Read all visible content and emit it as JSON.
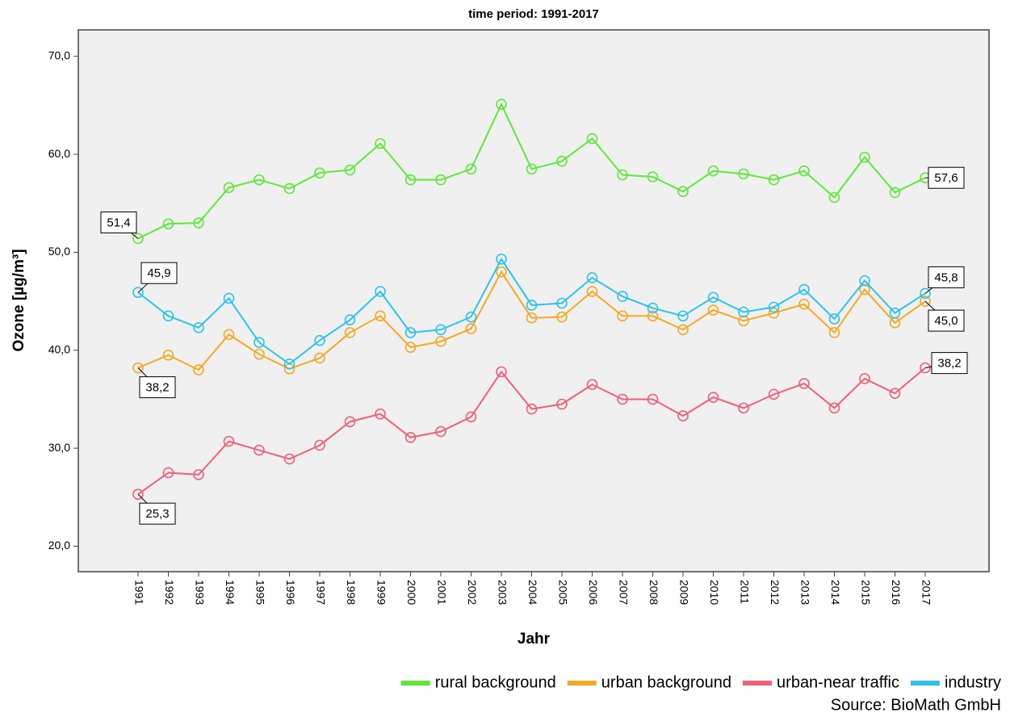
{
  "chart_data": {
    "type": "line",
    "title": "time period: 1991-2017",
    "x_label": "Jahr",
    "y_label": "Ozone [µg/m³]",
    "source": "Source: BioMath GmbH",
    "categories": [
      "1991",
      "1992",
      "1993",
      "1994",
      "1995",
      "1996",
      "1997",
      "1998",
      "1999",
      "2000",
      "2001",
      "2002",
      "2003",
      "2004",
      "2005",
      "2006",
      "2007",
      "2008",
      "2009",
      "2010",
      "2011",
      "2012",
      "2013",
      "2014",
      "2015",
      "2016",
      "2017"
    ],
    "ylim": [
      17.4,
      72.7
    ],
    "yticks": [
      {
        "value": 20,
        "label": "20,0"
      },
      {
        "value": 30,
        "label": "30,0"
      },
      {
        "value": 40,
        "label": "40,0"
      },
      {
        "value": 50,
        "label": "50,0"
      },
      {
        "value": 60,
        "label": "60,0"
      },
      {
        "value": 70,
        "label": "70,0"
      }
    ],
    "legend": "bottom-right",
    "series": [
      {
        "name": "rural background",
        "color": "#5ee838",
        "values": [
          51.4,
          52.9,
          53.0,
          56.6,
          57.4,
          56.5,
          58.1,
          58.4,
          61.1,
          57.4,
          57.4,
          58.5,
          65.1,
          58.5,
          59.3,
          61.6,
          57.9,
          57.7,
          56.2,
          58.3,
          58.0,
          57.4,
          58.3,
          55.6,
          59.7,
          56.1,
          57.6
        ],
        "value_labels": [
          "51,4",
          null,
          null,
          null,
          null,
          null,
          null,
          null,
          null,
          null,
          null,
          null,
          null,
          null,
          null,
          null,
          null,
          null,
          null,
          null,
          null,
          null,
          null,
          null,
          null,
          null,
          "57,6"
        ]
      },
      {
        "name": "urban background",
        "color": "#f7a823",
        "values": [
          38.2,
          39.5,
          38.0,
          41.6,
          39.6,
          38.1,
          39.2,
          41.8,
          43.5,
          40.3,
          40.9,
          42.2,
          48.0,
          43.3,
          43.4,
          46.0,
          43.5,
          43.5,
          42.1,
          44.1,
          43.0,
          43.8,
          44.7,
          41.8,
          46.2,
          42.8,
          45.0
        ],
        "value_labels": [
          "38,2",
          null,
          null,
          null,
          null,
          null,
          null,
          null,
          null,
          null,
          null,
          null,
          null,
          null,
          null,
          null,
          null,
          null,
          null,
          null,
          null,
          null,
          null,
          null,
          null,
          null,
          "45,0"
        ]
      },
      {
        "name": "urban-near traffic",
        "color": "#f35f78",
        "values": [
          25.3,
          27.5,
          27.3,
          30.7,
          29.8,
          28.9,
          30.3,
          32.7,
          33.5,
          31.1,
          31.7,
          33.2,
          37.8,
          34.0,
          34.5,
          36.5,
          35.0,
          35.0,
          33.3,
          35.2,
          34.1,
          35.5,
          36.6,
          34.1,
          37.1,
          35.6,
          38.2
        ],
        "value_labels": [
          "25,3",
          null,
          null,
          null,
          null,
          null,
          null,
          null,
          null,
          null,
          null,
          null,
          null,
          null,
          null,
          null,
          null,
          null,
          null,
          null,
          null,
          null,
          null,
          null,
          null,
          null,
          "38,2"
        ]
      },
      {
        "name": "industry",
        "color": "#2dc3ef",
        "values": [
          45.9,
          43.5,
          42.3,
          45.3,
          40.8,
          38.6,
          41.0,
          43.1,
          46.0,
          41.8,
          42.1,
          43.4,
          49.3,
          44.6,
          44.8,
          47.4,
          45.5,
          44.3,
          43.5,
          45.4,
          43.9,
          44.4,
          46.2,
          43.2,
          47.1,
          43.8,
          45.8
        ],
        "value_labels": [
          "45,9",
          null,
          null,
          null,
          null,
          null,
          null,
          null,
          null,
          null,
          null,
          null,
          null,
          null,
          null,
          null,
          null,
          null,
          null,
          null,
          null,
          null,
          null,
          null,
          null,
          null,
          "45,8"
        ]
      }
    ]
  }
}
